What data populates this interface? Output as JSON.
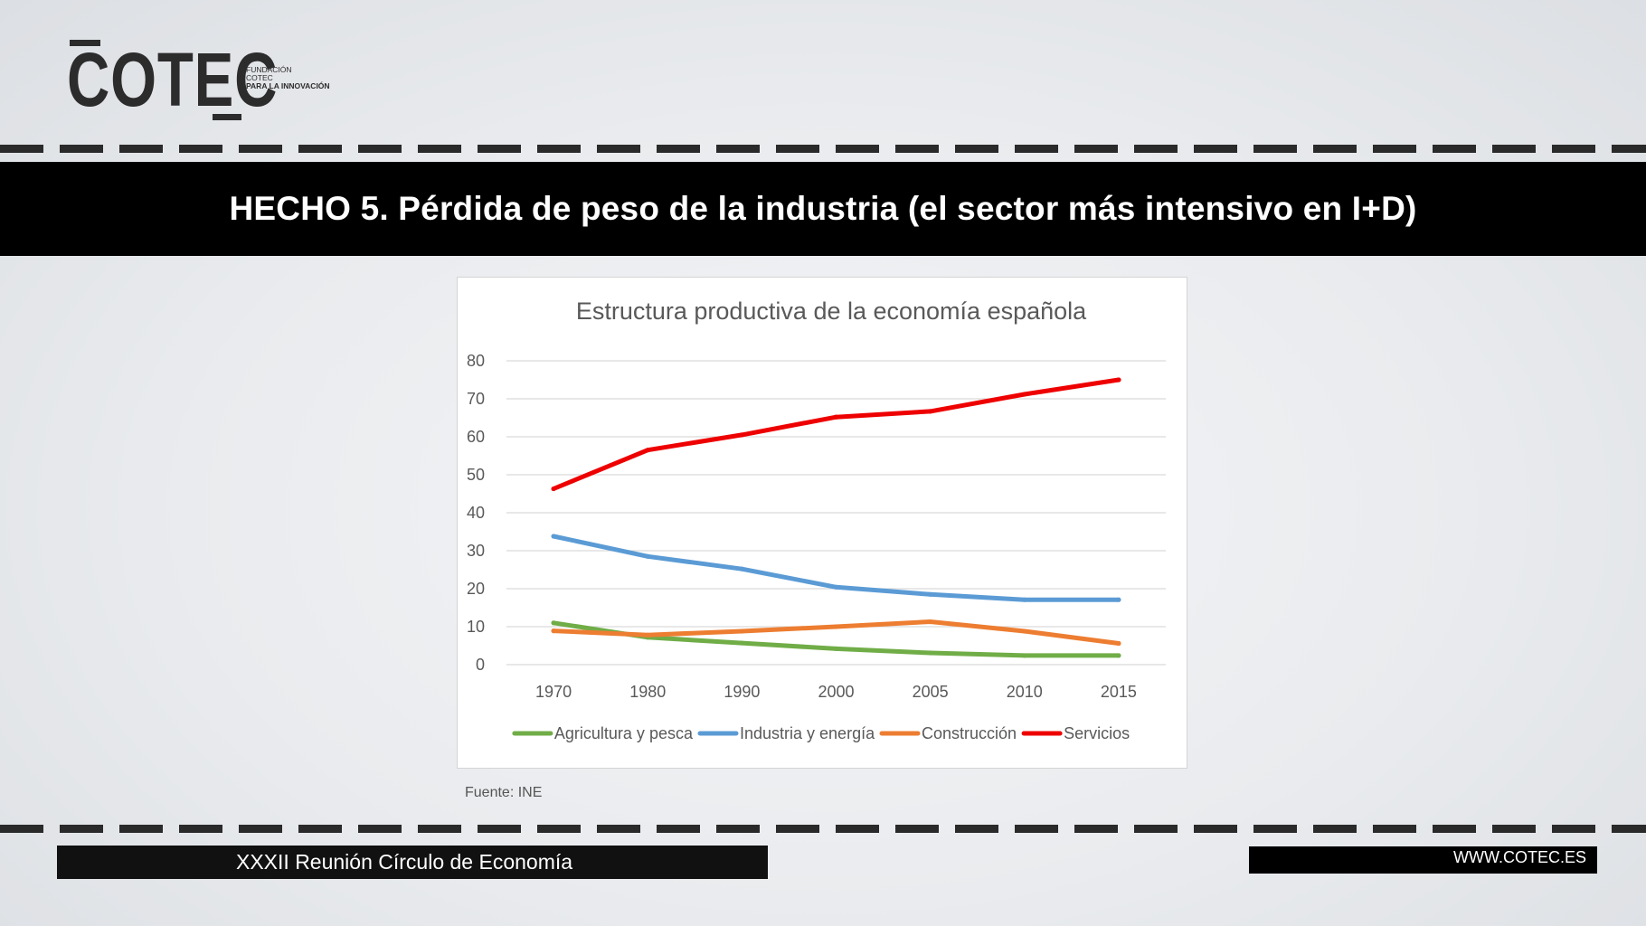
{
  "logo": {
    "word": "COTEC",
    "sub_line1": "FUNDACIÓN",
    "sub_line2": "COTEC",
    "sub_line3": "PARA LA INNOVACIÓN"
  },
  "header": {
    "title": "HECHO 5. Pérdida de peso de la industria (el sector más intensivo en I+D)"
  },
  "source": "Fuente: INE",
  "footer": {
    "event": "XXXII Reunión Círculo de Economía",
    "url": "WWW.COTEC.ES"
  },
  "colors": {
    "agricultura": "#70ad47",
    "industria": "#5b9bd5",
    "construccion": "#ed7d31",
    "servicios": "#ee0000",
    "gridline": "#d9d9d9",
    "title_band": "#000000"
  },
  "chart_data": {
    "type": "line",
    "title": "Estructura productiva de la economía española",
    "xlabel": "",
    "ylabel": "",
    "x": [
      "1970",
      "1980",
      "1990",
      "2000",
      "2005",
      "2010",
      "2015"
    ],
    "yticks": [
      "0",
      "10",
      "20",
      "30",
      "40",
      "50",
      "60",
      "70",
      "80"
    ],
    "ylim": [
      0,
      80
    ],
    "grid": true,
    "legend_position": "bottom",
    "series": [
      {
        "name": "Agricultura y pesca",
        "color_key": "agricultura",
        "values": [
          11,
          7.2,
          5.7,
          4.2,
          3.1,
          2.4,
          2.4
        ]
      },
      {
        "name": "Industria y energía",
        "color_key": "industria",
        "values": [
          33.8,
          28.5,
          25.2,
          20.4,
          18.5,
          17.1,
          17.1
        ]
      },
      {
        "name": "Construcción",
        "color_key": "construccion",
        "values": [
          8.9,
          7.8,
          8.8,
          10,
          11.3,
          8.8,
          5.6
        ]
      },
      {
        "name": "Servicios",
        "color_key": "servicios",
        "values": [
          46.3,
          56.5,
          60.5,
          65.2,
          66.7,
          71.2,
          75
        ]
      }
    ]
  }
}
